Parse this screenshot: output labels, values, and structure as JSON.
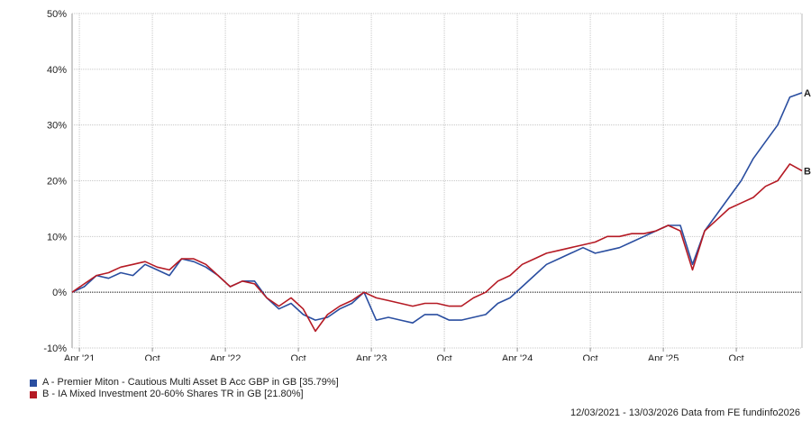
{
  "chart_data": {
    "type": "line",
    "title": "",
    "xlabel": "",
    "ylabel": "",
    "ylim": [
      -10,
      50
    ],
    "yticks": [
      "-10%",
      "0%",
      "10%",
      "20%",
      "30%",
      "40%",
      "50%"
    ],
    "xtick_labels": [
      "Apr '21",
      "Oct",
      "Apr '22",
      "Oct",
      "Apr '23",
      "Oct",
      "Apr '24",
      "Oct",
      "Apr '25",
      "Oct"
    ],
    "grid": true,
    "x_unit": "months since 12/03/2021",
    "x": [
      0,
      1,
      2,
      3,
      4,
      5,
      6,
      7,
      8,
      9,
      10,
      11,
      12,
      13,
      14,
      15,
      16,
      17,
      18,
      19,
      20,
      21,
      22,
      23,
      24,
      25,
      26,
      27,
      28,
      29,
      30,
      31,
      32,
      33,
      34,
      35,
      36,
      37,
      38,
      39,
      40,
      41,
      42,
      43,
      44,
      45,
      46,
      47,
      48,
      49,
      50,
      51,
      52,
      53,
      54,
      55,
      56,
      57,
      58,
      59,
      60
    ],
    "series": [
      {
        "name": "A - Premier Miton - Cautious Multi Asset B Acc GBP in GB [35.79%]",
        "color": "#2a4ea0",
        "end_label": "A",
        "values": [
          0,
          1,
          3,
          2.5,
          3.5,
          3,
          5,
          4,
          3,
          6,
          5.5,
          4.5,
          3,
          1,
          2,
          2,
          -1,
          -3,
          -2,
          -4,
          -5,
          -4.5,
          -3,
          -2,
          0,
          -5,
          -4.5,
          -5,
          -5.5,
          -4,
          -4,
          -5,
          -5,
          -4.5,
          -4,
          -2,
          -1,
          1,
          3,
          5,
          6,
          7,
          8,
          7,
          7.5,
          8,
          9,
          10,
          11,
          12,
          12,
          5,
          11,
          14,
          17,
          20,
          24,
          27,
          30,
          35,
          35.79
        ]
      },
      {
        "name": "B - IA Mixed Investment 20-60% Shares TR in GB [21.80%]",
        "color": "#b51a24",
        "end_label": "B",
        "values": [
          0,
          1.5,
          3,
          3.5,
          4.5,
          5,
          5.5,
          4.5,
          4,
          6,
          6,
          5,
          3,
          1,
          2,
          1.5,
          -1,
          -2.5,
          -1,
          -3,
          -7,
          -4,
          -2.5,
          -1.5,
          0,
          -1,
          -1.5,
          -2,
          -2.5,
          -2,
          -2,
          -2.5,
          -2.5,
          -1,
          0,
          2,
          3,
          5,
          6,
          7,
          7.5,
          8,
          8.5,
          9,
          10,
          10,
          10.5,
          10.5,
          11,
          12,
          11,
          4,
          11,
          13,
          15,
          16,
          17,
          19,
          20,
          23,
          21.8
        ]
      }
    ]
  },
  "legend": {
    "a": "A - Premier Miton - Cautious Multi Asset B Acc GBP in GB [35.79%]",
    "b": "B - IA Mixed Investment 20-60% Shares TR in GB [21.80%]"
  },
  "footer": "12/03/2021 - 13/03/2026 Data from FE fundinfo2026"
}
